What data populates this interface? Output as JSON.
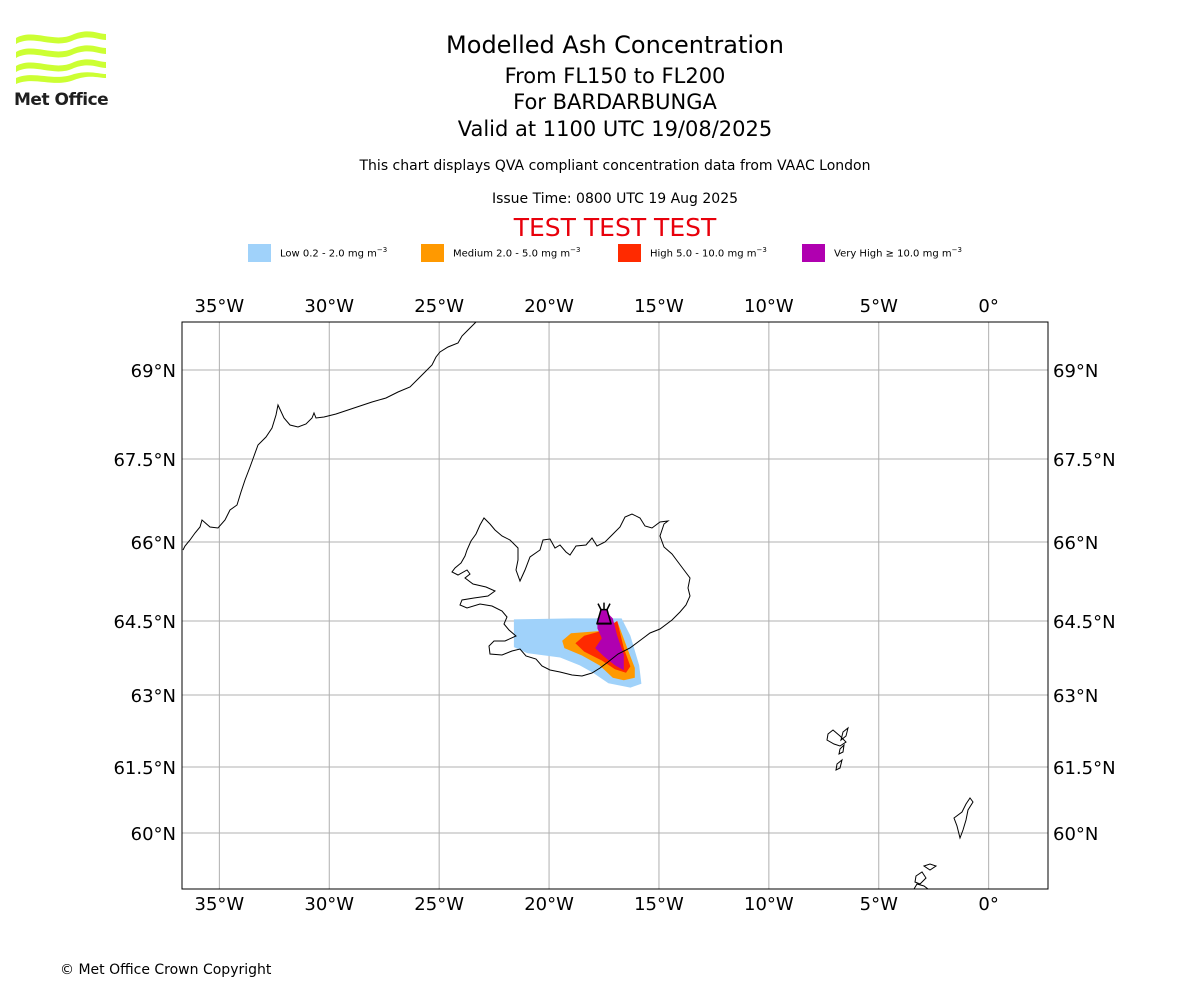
{
  "header": {
    "title": "Modelled Ash Concentration",
    "level_range": "From FL150 to FL200",
    "volcano": "For BARDARBUNGA",
    "valid_time": "Valid at 1100 UTC 19/08/2025",
    "compliance_note": "This chart displays QVA compliant concentration data from VAAC London",
    "issue_time": "Issue Time: 0800 UTC 19 Aug 2025",
    "test_banner": "TEST TEST TEST"
  },
  "logo": {
    "text": "Met Office",
    "color": "#ccff33"
  },
  "legend": [
    {
      "label": "Low 0.2 - 2.0 mg m",
      "exp": "−3",
      "color": "#a0d2fa"
    },
    {
      "label": "Medium 2.0 - 5.0 mg m",
      "exp": "−3",
      "color": "#ff9900"
    },
    {
      "label": "High 5.0 - 10.0 mg m",
      "exp": "−3",
      "color": "#ff2a00"
    },
    {
      "label": "Very High  ≥  10.0 mg m",
      "exp": "−3",
      "color": "#b000b0"
    }
  ],
  "map": {
    "lon_range": [
      -36.7,
      2.7
    ],
    "lat_range": [
      58.75,
      69.95
    ],
    "lon_ticks": [
      {
        "lon": -35,
        "label": "35°W"
      },
      {
        "lon": -30,
        "label": "30°W"
      },
      {
        "lon": -25,
        "label": "25°W"
      },
      {
        "lon": -20,
        "label": "20°W"
      },
      {
        "lon": -15,
        "label": "15°W"
      },
      {
        "lon": -10,
        "label": "10°W"
      },
      {
        "lon": -5,
        "label": "5°W"
      },
      {
        "lon": 0,
        "label": "0°"
      }
    ],
    "lat_ticks": [
      {
        "lat": 69,
        "label": "69°N"
      },
      {
        "lat": 67.5,
        "label": "67.5°N"
      },
      {
        "lat": 66,
        "label": "66°N"
      },
      {
        "lat": 64.5,
        "label": "64.5°N"
      },
      {
        "lat": 63,
        "label": "63°N"
      },
      {
        "lat": 61.5,
        "label": "61.5°N"
      },
      {
        "lat": 60,
        "label": "60°N"
      }
    ],
    "gridlines": true,
    "volcano_marker": {
      "name": "BARDARBUNGA",
      "lon": -17.5,
      "lat": 64.64,
      "symbol": "volcano-icon"
    },
    "ash_levels": [
      {
        "level": "Low",
        "color": "#a0d2fa",
        "lonlat": [
          [
            -21.6,
            64.53
          ],
          [
            -18.9,
            64.55
          ],
          [
            -16.7,
            64.55
          ],
          [
            -16.3,
            64.2
          ],
          [
            -15.9,
            63.6
          ],
          [
            -15.8,
            63.23
          ],
          [
            -16.3,
            63.15
          ],
          [
            -17.3,
            63.24
          ],
          [
            -18.0,
            63.45
          ],
          [
            -18.6,
            63.6
          ],
          [
            -19.5,
            63.76
          ],
          [
            -21.0,
            63.85
          ],
          [
            -21.6,
            63.97
          ]
        ]
      },
      {
        "level": "Medium",
        "color": "#ff9900",
        "lonlat": [
          [
            -19.4,
            64.1
          ],
          [
            -19.0,
            64.25
          ],
          [
            -17.6,
            64.3
          ],
          [
            -16.9,
            64.5
          ],
          [
            -16.4,
            63.9
          ],
          [
            -16.1,
            63.55
          ],
          [
            -16.1,
            63.35
          ],
          [
            -16.6,
            63.3
          ],
          [
            -17.1,
            63.35
          ],
          [
            -17.7,
            63.6
          ],
          [
            -18.5,
            63.8
          ],
          [
            -19.3,
            63.95
          ]
        ]
      },
      {
        "level": "High",
        "color": "#ff2a00",
        "lonlat": [
          [
            -18.8,
            64.05
          ],
          [
            -18.4,
            64.2
          ],
          [
            -17.6,
            64.3
          ],
          [
            -16.9,
            64.5
          ],
          [
            -16.6,
            63.95
          ],
          [
            -16.3,
            63.58
          ],
          [
            -16.5,
            63.45
          ],
          [
            -17.0,
            63.52
          ],
          [
            -17.6,
            63.7
          ],
          [
            -18.4,
            63.88
          ]
        ]
      },
      {
        "level": "Very High",
        "color": "#b000b0",
        "lonlat": [
          [
            -17.8,
            64.55
          ],
          [
            -17.5,
            64.72
          ],
          [
            -17.1,
            64.55
          ],
          [
            -16.9,
            64.2
          ],
          [
            -16.6,
            63.82
          ],
          [
            -16.6,
            63.5
          ],
          [
            -17.0,
            63.6
          ],
          [
            -17.5,
            63.78
          ],
          [
            -17.9,
            63.95
          ],
          [
            -17.6,
            64.15
          ],
          [
            -17.8,
            64.35
          ]
        ]
      }
    ]
  },
  "footer": {
    "copyright": "© Met Office Crown Copyright"
  }
}
